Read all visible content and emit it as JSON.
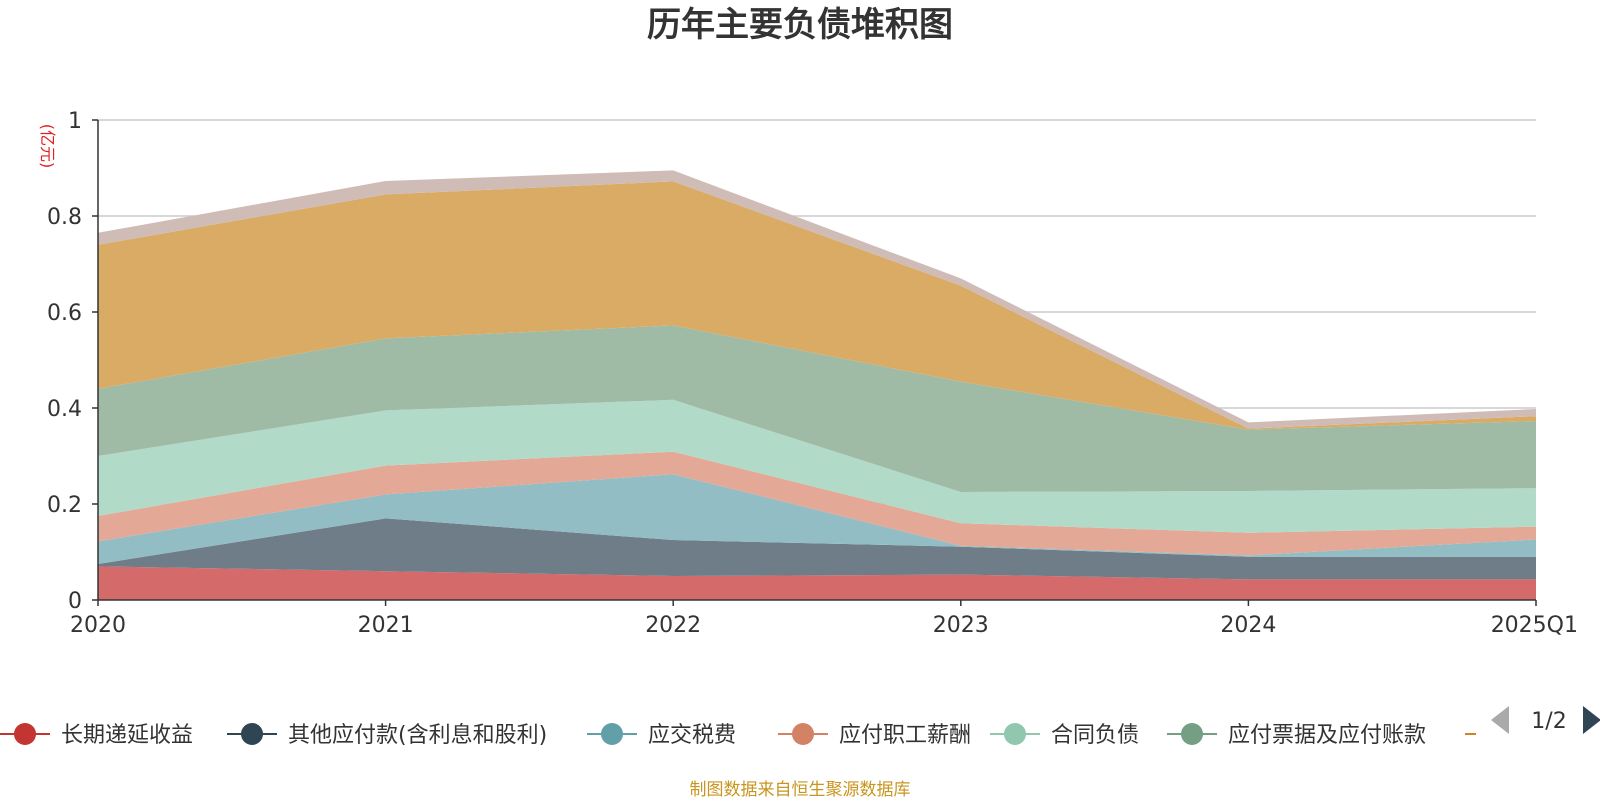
{
  "chart_data": {
    "type": "area",
    "stacked": true,
    "title": "历年主要负债堆积图",
    "unit_label": "(亿元)",
    "categories": [
      "2020",
      "2021",
      "2022",
      "2023",
      "2024",
      "2025Q1"
    ],
    "ylim": [
      0,
      1
    ],
    "yticks": [
      "0",
      "0.2",
      "0.4",
      "0.6",
      "0.8",
      "1"
    ],
    "grid": true,
    "legend_position": "bottom",
    "series": [
      {
        "name": "长期递延收益",
        "color": "#d46a6a",
        "legend_color": "#c23531",
        "values": [
          0.07,
          0.06,
          0.05,
          0.053,
          0.043,
          0.043
        ]
      },
      {
        "name": "其他应付款(含利息和股利)",
        "color": "#6f7d88",
        "legend_color": "#2f4554",
        "values": [
          0.005,
          0.11,
          0.075,
          0.058,
          0.047,
          0.047
        ]
      },
      {
        "name": "应交税费",
        "color": "#93bdc4",
        "legend_color": "#61a0a8",
        "values": [
          0.047,
          0.05,
          0.137,
          0.002,
          0.003,
          0.036
        ]
      },
      {
        "name": "应付职工薪酬",
        "color": "#e4a896",
        "legend_color": "#d48265",
        "values": [
          0.053,
          0.06,
          0.047,
          0.047,
          0.047,
          0.027
        ]
      },
      {
        "name": "合同负债",
        "color": "#b2dac8",
        "legend_color": "#91c7ae",
        "values": [
          0.125,
          0.115,
          0.108,
          0.065,
          0.087,
          0.08
        ]
      },
      {
        "name": "应付票据及应付账款",
        "color": "#9fbba6",
        "legend_color": "#749f83",
        "values": [
          0.14,
          0.15,
          0.155,
          0.23,
          0.128,
          0.14
        ]
      },
      {
        "name": "",
        "color": "#daab64",
        "legend_color": "#ca8622",
        "values": [
          0.3,
          0.3,
          0.3,
          0.2,
          0.002,
          0.01
        ]
      },
      {
        "name": "",
        "color": "#d0bcb6",
        "legend_color": "#bda29a",
        "values": [
          0.025,
          0.028,
          0.023,
          0.015,
          0.013,
          0.015
        ]
      }
    ],
    "legend_page": "1/2",
    "footer": "制图数据来自恒生聚源数据库"
  }
}
